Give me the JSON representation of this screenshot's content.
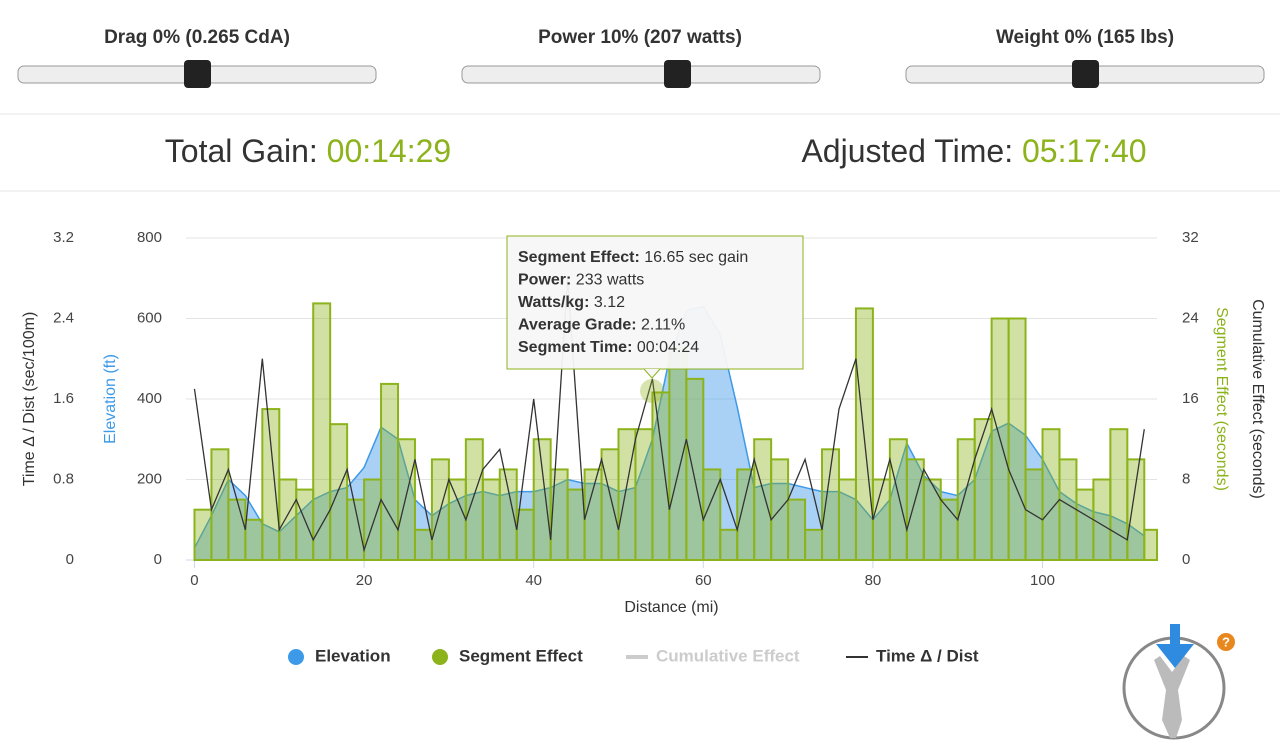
{
  "sliders": [
    {
      "label": "Drag 0% (0.265 CdA)"
    },
    {
      "label": "Power 10% (207 watts)"
    },
    {
      "label": "Weight 0% (165 lbs)"
    }
  ],
  "stats": [
    {
      "label": "Total Gain:",
      "value": "00:14:29"
    },
    {
      "label": "Adjusted Time:",
      "value": "05:17:40"
    }
  ],
  "tooltip": {
    "lines": [
      {
        "label": "Segment Effect:",
        "value": "16.65 sec gain"
      },
      {
        "label": "Power:",
        "value": "233 watts"
      },
      {
        "label": "Watts/kg:",
        "value": "3.12"
      },
      {
        "label": "Average Grade:",
        "value": "2.11%"
      },
      {
        "label": "Segment Time:",
        "value": "00:04:24"
      }
    ]
  },
  "help_icon": "?",
  "chart_data": {
    "type": "combo",
    "xlabel": "Distance (mi)",
    "x": [
      0,
      2,
      4,
      6,
      8,
      10,
      12,
      14,
      16,
      18,
      20,
      22,
      24,
      26,
      28,
      30,
      32,
      34,
      36,
      38,
      40,
      42,
      44,
      46,
      48,
      50,
      52,
      54,
      56,
      58,
      60,
      62,
      64,
      66,
      68,
      70,
      72,
      74,
      76,
      78,
      80,
      82,
      84,
      86,
      88,
      90,
      92,
      94,
      96,
      98,
      100,
      102,
      104,
      106,
      108,
      110,
      112
    ],
    "xlim": [
      -1,
      113.5
    ],
    "xticks": [
      0,
      20,
      40,
      60,
      80,
      100
    ],
    "ylabel": "Elevation (ft)",
    "ylim": [
      0,
      800
    ],
    "yticks": [
      0,
      200,
      400,
      600,
      800
    ],
    "y2label": "Segment Effect (seconds)",
    "y2lim": [
      0,
      32
    ],
    "y2ticks": [
      0,
      8,
      16,
      24,
      32
    ],
    "y3label": "Time Δ / Dist (sec/100m)",
    "y3lim": [
      0,
      3.2
    ],
    "y3ticks": [
      0,
      0.8,
      1.6,
      2.4,
      3.2
    ],
    "y4label": "Cumulative Effect (seconds)",
    "grid": true,
    "series": [
      {
        "name": "Elevation",
        "color": "#3d9ae8",
        "kind": "area",
        "values": [
          30,
          110,
          200,
          160,
          90,
          70,
          110,
          150,
          170,
          180,
          230,
          330,
          300,
          150,
          110,
          140,
          160,
          170,
          160,
          170,
          170,
          180,
          200,
          190,
          190,
          170,
          180,
          300,
          500,
          620,
          630,
          560,
          380,
          180,
          190,
          190,
          180,
          170,
          170,
          150,
          100,
          150,
          290,
          210,
          170,
          160,
          200,
          320,
          340,
          310,
          250,
          170,
          140,
          120,
          110,
          90,
          60
        ]
      },
      {
        "name": "Segment Effect",
        "color": "#8cb31b",
        "kind": "step",
        "axis": "y2",
        "values": [
          5,
          11,
          6,
          4,
          15,
          8,
          7,
          25.5,
          13.5,
          6,
          8,
          17.5,
          12,
          3,
          10,
          8,
          12,
          8,
          9,
          5,
          12,
          9,
          7,
          9,
          11,
          13,
          13,
          16.65,
          21,
          18,
          9,
          3,
          9,
          12,
          10,
          6,
          3,
          11,
          8,
          25,
          8,
          12,
          10,
          8,
          6,
          12,
          14,
          24,
          24,
          9,
          13,
          10,
          7,
          8,
          13,
          10,
          3
        ]
      },
      {
        "name": "Cumulative Effect",
        "color": "#cccccc",
        "kind": "line",
        "axis": "y2",
        "hidden": true
      },
      {
        "name": "Time Δ / Dist",
        "color": "#333333",
        "kind": "line",
        "axis": "y3",
        "values": [
          1.7,
          0.5,
          0.9,
          0.3,
          2.0,
          0.3,
          0.6,
          0.2,
          0.5,
          0.9,
          0.1,
          0.6,
          0.3,
          1.0,
          0.2,
          0.8,
          0.4,
          0.9,
          1.1,
          0.3,
          1.6,
          0.2,
          2.8,
          0.4,
          1.0,
          0.3,
          1.2,
          1.8,
          0.5,
          1.2,
          0.4,
          0.8,
          0.3,
          1.0,
          0.4,
          0.6,
          1.0,
          0.3,
          1.5,
          2.0,
          0.4,
          1.0,
          0.3,
          0.9,
          0.6,
          0.4,
          1.0,
          1.5,
          0.9,
          0.5,
          0.4,
          0.6,
          0.5,
          0.4,
          0.3,
          0.2,
          1.3
        ]
      }
    ]
  }
}
